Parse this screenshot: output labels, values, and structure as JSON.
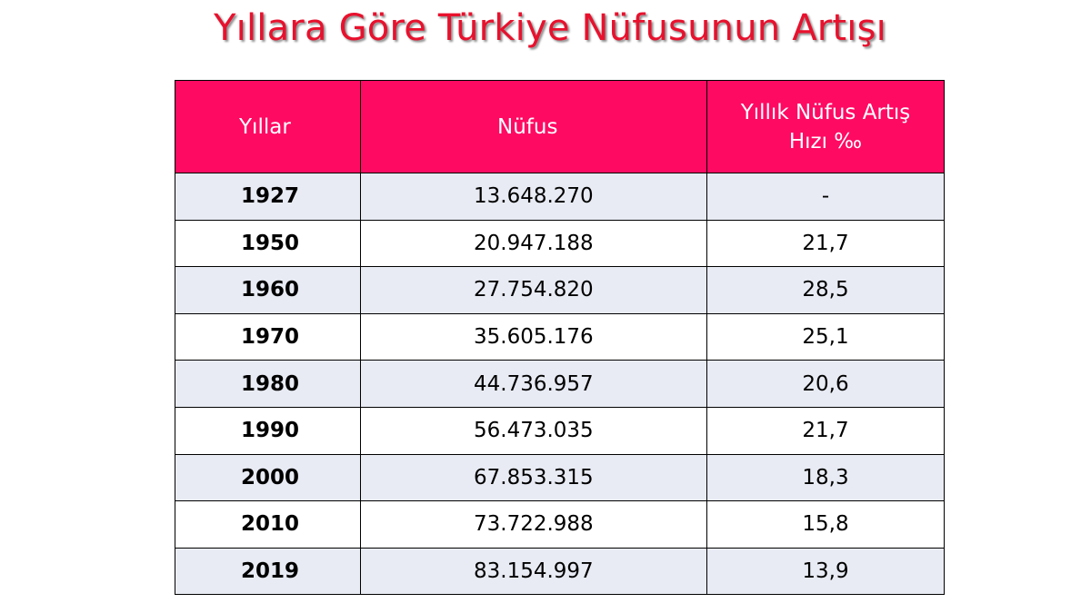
{
  "title": "Yıllara Göre Türkiye Nüfusunun Artışı",
  "table": {
    "headers": {
      "year": "Yıllar",
      "population": "Nüfus",
      "rate_line1": "Yıllık Nüfus Artış",
      "rate_line2": "Hızı ‰"
    },
    "rows": [
      {
        "year": "1927",
        "population": "13.648.270",
        "rate": "-"
      },
      {
        "year": "1950",
        "population": "20.947.188",
        "rate": "21,7"
      },
      {
        "year": "1960",
        "population": "27.754.820",
        "rate": "28,5"
      },
      {
        "year": "1970",
        "population": "35.605.176",
        "rate": "25,1"
      },
      {
        "year": "1980",
        "population": "44.736.957",
        "rate": "20,6"
      },
      {
        "year": "1990",
        "population": "56.473.035",
        "rate": "21,7"
      },
      {
        "year": "2000",
        "population": "67.853.315",
        "rate": "18,3"
      },
      {
        "year": "2010",
        "population": "73.722.988",
        "rate": "15,8"
      },
      {
        "year": "2019",
        "population": "83.154.997",
        "rate": "13,9"
      }
    ]
  },
  "colors": {
    "title": "#e8112d",
    "header_bg": "#ff0a63",
    "header_text": "#ffffff",
    "row_alt_bg": "#e8ebf3",
    "border": "#000000"
  }
}
